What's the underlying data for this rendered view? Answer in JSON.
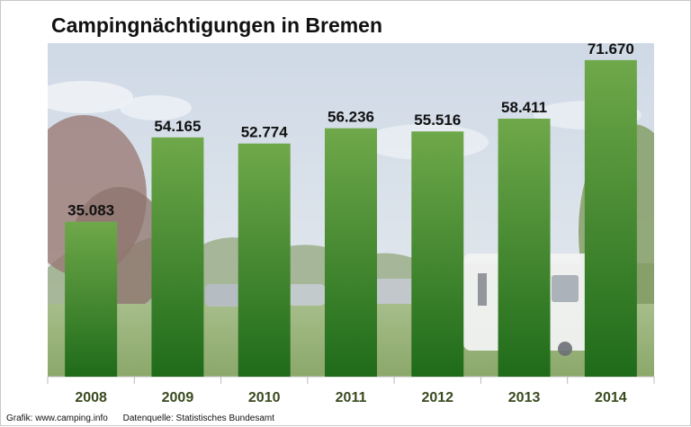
{
  "chart_data": {
    "type": "bar",
    "title": "Campingnächtigungen in Bremen",
    "categories": [
      "2008",
      "2009",
      "2010",
      "2011",
      "2012",
      "2013",
      "2014"
    ],
    "values": [
      35083,
      54165,
      52774,
      56236,
      55516,
      58411,
      71670
    ],
    "value_labels": [
      "35.083",
      "54.165",
      "52.774",
      "56.236",
      "55.516",
      "58.411",
      "71.670"
    ],
    "xlabel": "",
    "ylabel": "",
    "ylim": [
      0,
      75500
    ],
    "grid": false,
    "legend": "none",
    "colors": {
      "bar_top": "#6fa84a",
      "bar_bottom": "#1f6b1a",
      "tick_label": "#3a4a1f"
    }
  },
  "footer": {
    "credit": "Grafik: www.camping.info",
    "source": "Datenquelle:  Statistisches Bundesamt"
  }
}
